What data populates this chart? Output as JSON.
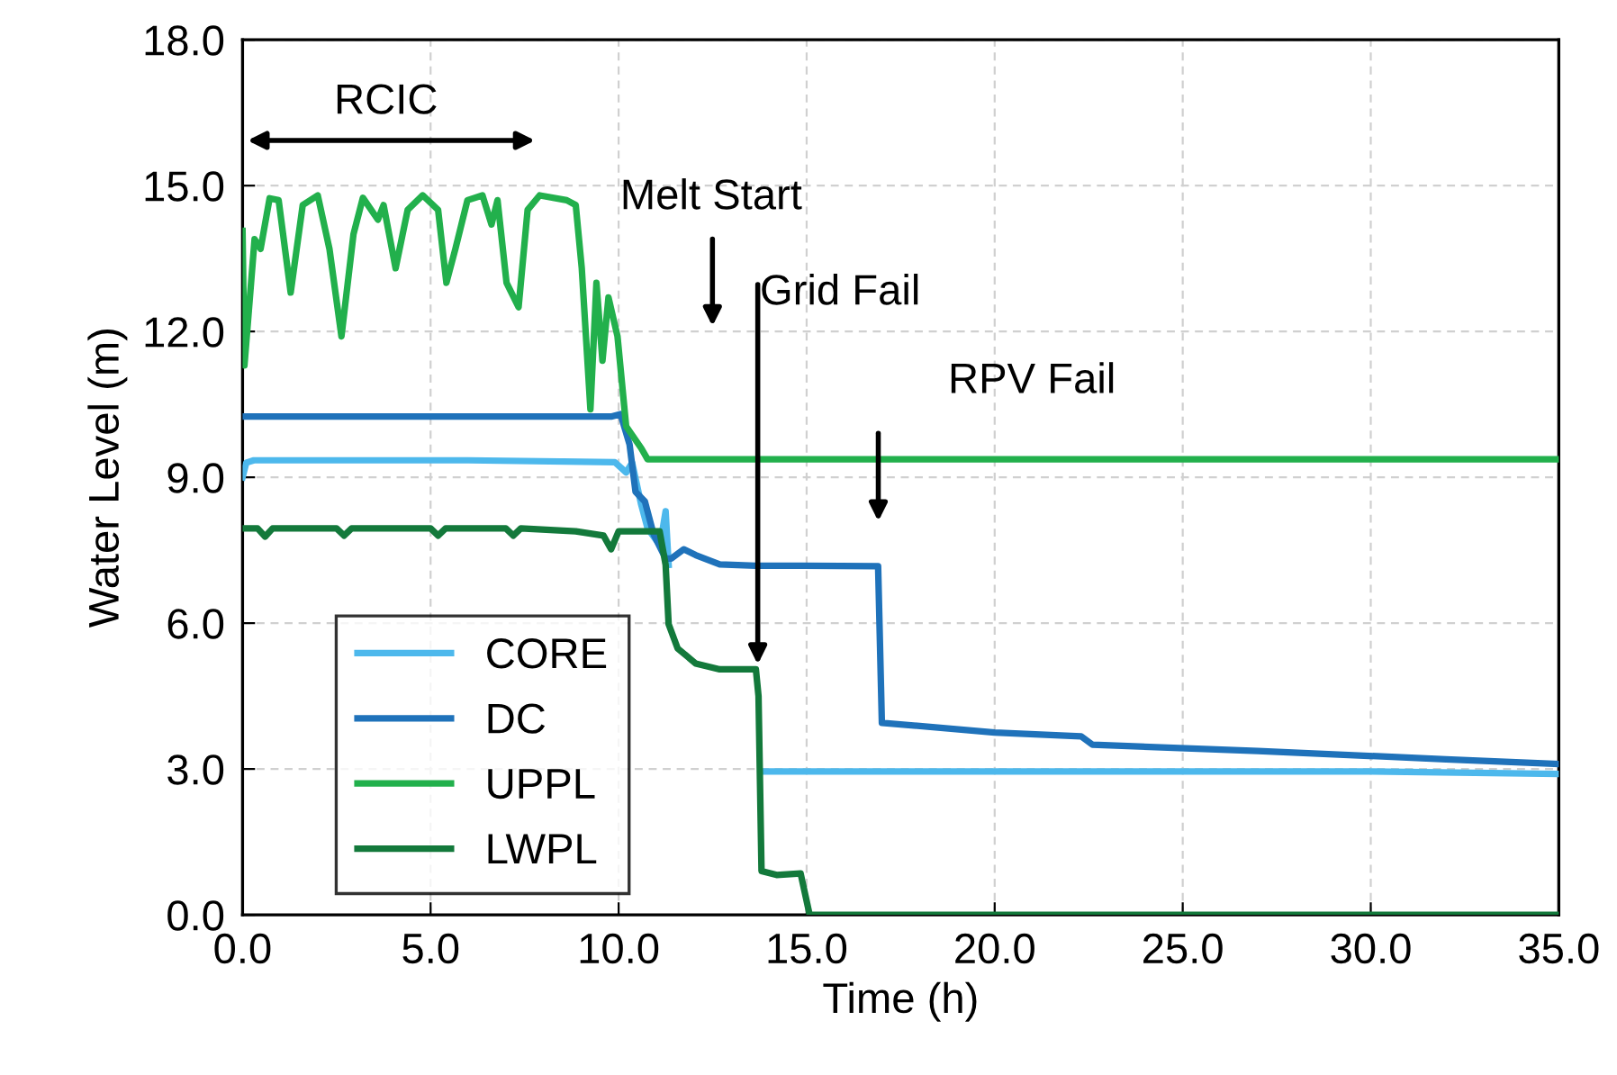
{
  "chart_data": {
    "type": "line",
    "xlabel": "Time (h)",
    "ylabel": "Water Level (m)",
    "xlim": [
      0,
      35
    ],
    "ylim": [
      0,
      18
    ],
    "xticks": [
      {
        "value": 0,
        "label": "0.0"
      },
      {
        "value": 5,
        "label": "5.0"
      },
      {
        "value": 10,
        "label": "10.0"
      },
      {
        "value": 15,
        "label": "15.0"
      },
      {
        "value": 20,
        "label": "20.0"
      },
      {
        "value": 25,
        "label": "25.0"
      },
      {
        "value": 30,
        "label": "30.0"
      },
      {
        "value": 35,
        "label": "35.0"
      }
    ],
    "yticks": [
      {
        "value": 0,
        "label": "0.0"
      },
      {
        "value": 3,
        "label": "3.0"
      },
      {
        "value": 6,
        "label": "6.0"
      },
      {
        "value": 9,
        "label": "9.0"
      },
      {
        "value": 12,
        "label": "12.0"
      },
      {
        "value": 15,
        "label": "15.0"
      },
      {
        "value": 18,
        "label": "18.0"
      }
    ],
    "grid": true,
    "legend": "bottom left",
    "marker": "none",
    "line_style": "solid",
    "series": [
      {
        "name": "CORE",
        "color": "#4db8ec",
        "x": [
          0,
          0.1,
          0.3,
          3,
          6,
          9.9,
          10.2,
          10.36,
          10.6,
          10.77,
          11.1,
          11.25,
          11.33,
          11.5,
          13.88,
          20,
          30,
          35
        ],
        "values": [
          9.0,
          9.3,
          9.35,
          9.35,
          9.35,
          9.31,
          9.1,
          9.3,
          8.44,
          7.95,
          7.6,
          8.3,
          7.2,
          null,
          2.95,
          2.95,
          2.95,
          2.9
        ]
      },
      {
        "name": "DC",
        "color": "#1f72ba",
        "x": [
          0,
          5,
          9.8,
          10.05,
          10.29,
          10.45,
          10.7,
          10.93,
          11.25,
          11.4,
          11.73,
          12.05,
          12.69,
          13.65,
          14.9,
          16.9,
          17.0,
          20,
          22.3,
          22.6,
          27,
          32,
          35
        ],
        "values": [
          10.25,
          10.25,
          10.25,
          10.3,
          9.68,
          8.7,
          8.5,
          7.83,
          7.33,
          7.33,
          7.52,
          7.4,
          7.21,
          7.18,
          7.18,
          7.17,
          3.95,
          3.75,
          3.67,
          3.5,
          3.37,
          3.2,
          3.1
        ]
      },
      {
        "name": "UPPL",
        "color": "#22b04c",
        "x": [
          0,
          0.05,
          0.32,
          0.48,
          0.72,
          0.96,
          1.28,
          1.44,
          1.6,
          2.0,
          2.31,
          2.63,
          2.95,
          3.2,
          3.6,
          3.75,
          4.07,
          4.39,
          4.79,
          5.2,
          5.42,
          5.66,
          5.98,
          6.38,
          6.62,
          6.78,
          7.02,
          7.34,
          7.58,
          7.9,
          8.62,
          8.86,
          9.02,
          9.25,
          9.41,
          9.57,
          9.73,
          9.97,
          10.2,
          10.6,
          10.77,
          20,
          35
        ],
        "values": [
          14.07,
          11.3,
          13.9,
          13.7,
          14.74,
          14.7,
          12.8,
          13.7,
          14.6,
          14.8,
          13.7,
          11.9,
          14.0,
          14.75,
          14.3,
          14.6,
          13.3,
          14.5,
          14.8,
          14.5,
          13.0,
          13.7,
          14.7,
          14.8,
          14.2,
          14.7,
          13.0,
          12.5,
          14.5,
          14.8,
          14.7,
          14.6,
          13.3,
          10.4,
          13.0,
          11.4,
          12.7,
          11.9,
          10.05,
          9.6,
          9.37,
          9.37,
          9.37
        ]
      },
      {
        "name": "LWPL",
        "color": "#13793b",
        "x": [
          0,
          0.4,
          0.6,
          0.8,
          2.5,
          2.7,
          2.9,
          5.0,
          5.2,
          5.4,
          7.0,
          7.2,
          7.4,
          8.86,
          9.6,
          9.8,
          10.0,
          11.09,
          11.25,
          11.33,
          11.57,
          12.05,
          12.69,
          13.65,
          13.72,
          13.8,
          14.2,
          14.84,
          15.08,
          20,
          35
        ],
        "values": [
          7.95,
          7.95,
          7.78,
          7.95,
          7.95,
          7.8,
          7.95,
          7.95,
          7.8,
          7.95,
          7.95,
          7.8,
          7.95,
          7.89,
          7.8,
          7.52,
          7.89,
          7.89,
          7.2,
          5.98,
          5.48,
          5.17,
          5.05,
          5.05,
          4.5,
          0.9,
          0.82,
          0.85,
          0,
          0,
          0
        ]
      }
    ],
    "annotations": [
      "RCIC",
      "Melt Start",
      {
        "text": "Grid Fail",
        "x": 13.7,
        "y": 5.05
      },
      "RPV Fail"
    ]
  }
}
